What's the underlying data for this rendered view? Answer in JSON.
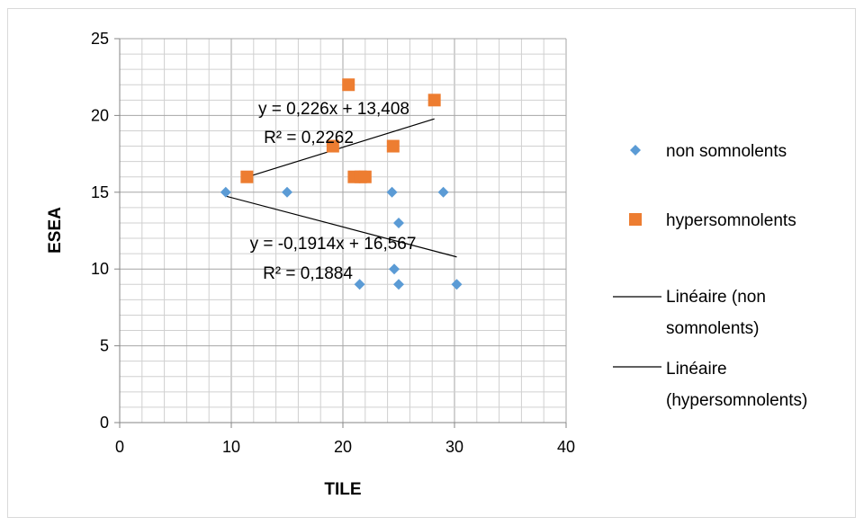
{
  "chart_data": {
    "type": "scatter",
    "xlabel": "TILE",
    "ylabel": "ESEA",
    "xlim": [
      0,
      40
    ],
    "ylim": [
      0,
      25
    ],
    "xticks": [
      0,
      10,
      20,
      30,
      40
    ],
    "yticks": [
      0,
      5,
      10,
      15,
      20,
      25
    ],
    "grid": true,
    "legend_position": "right",
    "series": [
      {
        "name": "non somnolents",
        "color": "#5b9bd5",
        "marker": "diamond",
        "points": [
          {
            "x": 9.5,
            "y": 15
          },
          {
            "x": 15,
            "y": 15
          },
          {
            "x": 24.4,
            "y": 15
          },
          {
            "x": 29,
            "y": 15
          },
          {
            "x": 25,
            "y": 13
          },
          {
            "x": 24.6,
            "y": 10
          },
          {
            "x": 21.5,
            "y": 9
          },
          {
            "x": 25,
            "y": 9
          },
          {
            "x": 30.2,
            "y": 9
          }
        ]
      },
      {
        "name": "hypersomnolents",
        "color": "#ed7d31",
        "marker": "square",
        "points": [
          {
            "x": 11.4,
            "y": 16
          },
          {
            "x": 19.1,
            "y": 18
          },
          {
            "x": 20.5,
            "y": 22
          },
          {
            "x": 21,
            "y": 16
          },
          {
            "x": 21.6,
            "y": 16
          },
          {
            "x": 22,
            "y": 16
          },
          {
            "x": 24.5,
            "y": 18
          },
          {
            "x": 28.2,
            "y": 21
          }
        ]
      }
    ],
    "trendlines": [
      {
        "legend": "Linéaire (non somnolents)",
        "legend_lines": [
          "Linéaire (non",
          "somnolents)"
        ],
        "slope": -0.1914,
        "intercept": 16.567,
        "x_range": [
          9.5,
          30.2
        ],
        "equation": "y = -0,1914x + 16,567",
        "r2": "R² = 0,1884",
        "color": "#000000"
      },
      {
        "legend": "Linéaire (hypersomnolents)",
        "legend_lines": [
          "Linéaire",
          "(hypersomnolents)"
        ],
        "slope": 0.226,
        "intercept": 13.408,
        "x_range": [
          11.4,
          28.2
        ],
        "equation": "y = 0,226x + 13,408",
        "r2": "R² = 0,2262",
        "color": "#000000"
      }
    ]
  }
}
